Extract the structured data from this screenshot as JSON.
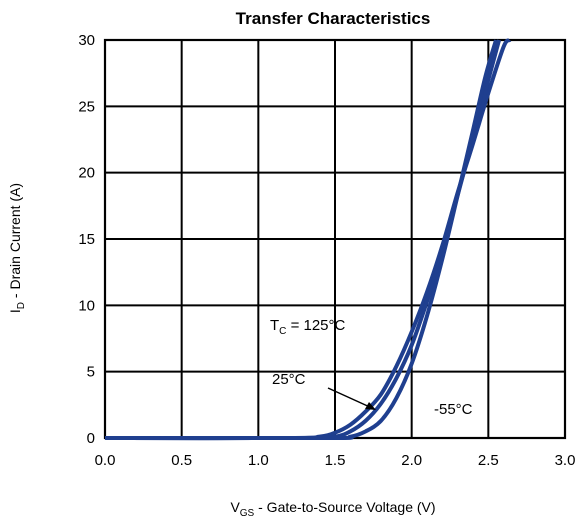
{
  "chart_data": {
    "type": "line",
    "title": "Transfer Characteristics",
    "xlabel": {
      "prefix": "V",
      "sub": "GS",
      "rest": " - Gate-to-Source Voltage (V)"
    },
    "ylabel": {
      "prefix": "I",
      "sub": "D",
      "rest": " - Drain Current (A)"
    },
    "xlim": [
      0,
      3
    ],
    "ylim": [
      0,
      30
    ],
    "x_ticks": [
      "0.0",
      "0.5",
      "1.0",
      "1.5",
      "2.0",
      "2.5",
      "3.0"
    ],
    "y_ticks": [
      "0",
      "5",
      "10",
      "15",
      "20",
      "25",
      "30"
    ],
    "grid": true,
    "line_color": "#1f3f8f",
    "series": [
      {
        "label_id": "125",
        "points": [
          [
            0,
            0
          ],
          [
            1.2,
            0
          ],
          [
            1.4,
            0.1
          ],
          [
            1.5,
            0.4
          ],
          [
            1.6,
            1.0
          ],
          [
            1.7,
            2.0
          ],
          [
            1.8,
            3.3
          ],
          [
            1.9,
            5.4
          ],
          [
            2.0,
            8.0
          ],
          [
            2.1,
            11.0
          ],
          [
            2.2,
            14.5
          ],
          [
            2.3,
            18.5
          ],
          [
            2.4,
            22.2
          ],
          [
            2.5,
            26.0
          ],
          [
            2.6,
            29.5
          ],
          [
            2.64,
            30
          ]
        ]
      },
      {
        "label_id": "25",
        "points": [
          [
            0,
            0
          ],
          [
            1.3,
            0
          ],
          [
            1.5,
            0.1
          ],
          [
            1.6,
            0.5
          ],
          [
            1.7,
            1.3
          ],
          [
            1.8,
            2.6
          ],
          [
            1.9,
            4.5
          ],
          [
            2.0,
            7.0
          ],
          [
            2.1,
            10.3
          ],
          [
            2.2,
            14.0
          ],
          [
            2.3,
            18.3
          ],
          [
            2.4,
            22.6
          ],
          [
            2.5,
            27.0
          ],
          [
            2.57,
            30
          ]
        ]
      },
      {
        "label_id": "-55",
        "points": [
          [
            0,
            0
          ],
          [
            1.45,
            0
          ],
          [
            1.6,
            0.1
          ],
          [
            1.7,
            0.5
          ],
          [
            1.8,
            1.3
          ],
          [
            1.9,
            3.0
          ],
          [
            2.0,
            5.6
          ],
          [
            2.1,
            9.2
          ],
          [
            2.2,
            13.5
          ],
          [
            2.3,
            18.3
          ],
          [
            2.4,
            23.2
          ],
          [
            2.48,
            27.2
          ],
          [
            2.55,
            30
          ]
        ]
      }
    ],
    "annotations": {
      "t125": {
        "prefix": "T",
        "sub": "C",
        "rest": " = 125°C"
      },
      "t25": "25°C",
      "tm55": "-55°C"
    }
  }
}
